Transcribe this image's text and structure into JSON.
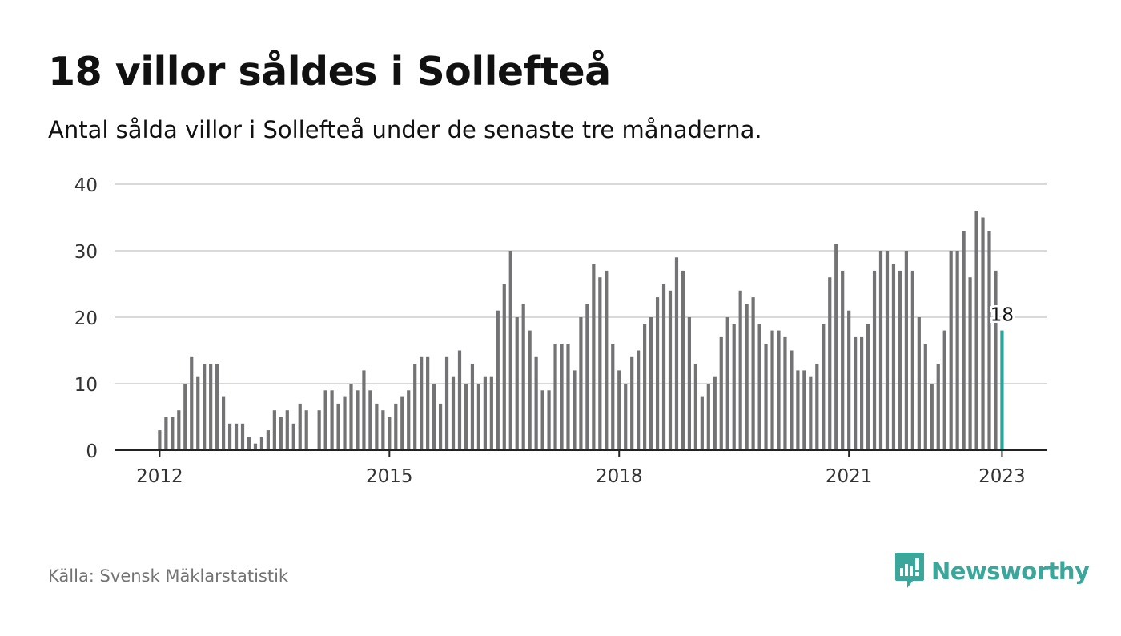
{
  "title": "18 villor såldes i Sollefteå",
  "subtitle": "Antal sålda villor i Sollefteå under de senaste tre månaderna.",
  "source": "Källa: Svensk Mäklarstatistik",
  "brand": "Newsworthy",
  "colors": {
    "bar": "#737375",
    "highlight": "#26a69a",
    "grid": "#d9d9d9",
    "axis": "#222222",
    "brand": "#3aa79a",
    "source_text": "#737373"
  },
  "chart_data": {
    "type": "bar",
    "title": "18 villor såldes i Sollefteå",
    "subtitle": "Antal sålda villor i Sollefteå under de senaste tre månaderna.",
    "xlabel": "",
    "ylabel": "",
    "ylim": [
      0,
      40
    ],
    "yticks": [
      0,
      10,
      20,
      30,
      40
    ],
    "xticks": [
      "2012",
      "2015",
      "2018",
      "2021",
      "2023"
    ],
    "grid": true,
    "legend": "none",
    "highlight_label": "18",
    "categories": [
      "2012-01",
      "2012-02",
      "2012-03",
      "2012-04",
      "2012-05",
      "2012-06",
      "2012-07",
      "2012-08",
      "2012-09",
      "2012-10",
      "2012-11",
      "2012-12",
      "2013-01",
      "2013-02",
      "2013-03",
      "2013-04",
      "2013-05",
      "2013-06",
      "2013-07",
      "2013-08",
      "2013-09",
      "2013-10",
      "2013-11",
      "2013-12",
      "2014-01",
      "2014-02",
      "2014-03",
      "2014-04",
      "2014-05",
      "2014-06",
      "2014-07",
      "2014-08",
      "2014-09",
      "2014-10",
      "2014-11",
      "2014-12",
      "2015-01",
      "2015-02",
      "2015-03",
      "2015-04",
      "2015-05",
      "2015-06",
      "2015-07",
      "2015-08",
      "2015-09",
      "2015-10",
      "2015-11",
      "2015-12",
      "2016-01",
      "2016-02",
      "2016-03",
      "2016-04",
      "2016-05",
      "2016-06",
      "2016-07",
      "2016-08",
      "2016-09",
      "2016-10",
      "2016-11",
      "2016-12",
      "2017-01",
      "2017-02",
      "2017-03",
      "2017-04",
      "2017-05",
      "2017-06",
      "2017-07",
      "2017-08",
      "2017-09",
      "2017-10",
      "2017-11",
      "2017-12",
      "2018-01",
      "2018-02",
      "2018-03",
      "2018-04",
      "2018-05",
      "2018-06",
      "2018-07",
      "2018-08",
      "2018-09",
      "2018-10",
      "2018-11",
      "2018-12",
      "2019-01",
      "2019-02",
      "2019-03",
      "2019-04",
      "2019-05",
      "2019-06",
      "2019-07",
      "2019-08",
      "2019-09",
      "2019-10",
      "2019-11",
      "2019-12",
      "2020-01",
      "2020-02",
      "2020-03",
      "2020-04",
      "2020-05",
      "2020-06",
      "2020-07",
      "2020-08",
      "2020-09",
      "2020-10",
      "2020-11",
      "2020-12",
      "2021-01",
      "2021-02",
      "2021-03",
      "2021-04",
      "2021-05",
      "2021-06",
      "2021-07",
      "2021-08",
      "2021-09",
      "2021-10",
      "2021-11",
      "2021-12",
      "2022-01",
      "2022-02",
      "2022-03",
      "2022-04",
      "2022-05",
      "2022-06",
      "2022-07",
      "2022-08",
      "2022-09",
      "2022-10",
      "2022-11",
      "2022-12",
      "2023-01"
    ],
    "values": [
      3,
      5,
      5,
      6,
      10,
      14,
      11,
      13,
      13,
      13,
      8,
      4,
      4,
      4,
      2,
      1,
      2,
      3,
      6,
      5,
      6,
      4,
      7,
      6,
      0,
      6,
      9,
      9,
      7,
      8,
      10,
      9,
      12,
      9,
      7,
      6,
      5,
      7,
      8,
      9,
      13,
      14,
      14,
      10,
      7,
      14,
      11,
      15,
      10,
      13,
      10,
      11,
      11,
      21,
      25,
      30,
      20,
      22,
      18,
      14,
      9,
      9,
      16,
      16,
      16,
      12,
      20,
      22,
      28,
      26,
      27,
      16,
      12,
      10,
      14,
      15,
      19,
      20,
      23,
      25,
      24,
      29,
      27,
      20,
      13,
      8,
      10,
      11,
      17,
      20,
      19,
      24,
      22,
      23,
      19,
      16,
      18,
      18,
      17,
      15,
      12,
      12,
      11,
      13,
      19,
      26,
      31,
      27,
      21,
      17,
      17,
      19,
      27,
      30,
      30,
      28,
      27,
      30,
      27,
      20,
      16,
      10,
      13,
      18,
      30,
      30,
      33,
      26,
      36,
      35,
      33,
      27,
      18
    ]
  }
}
